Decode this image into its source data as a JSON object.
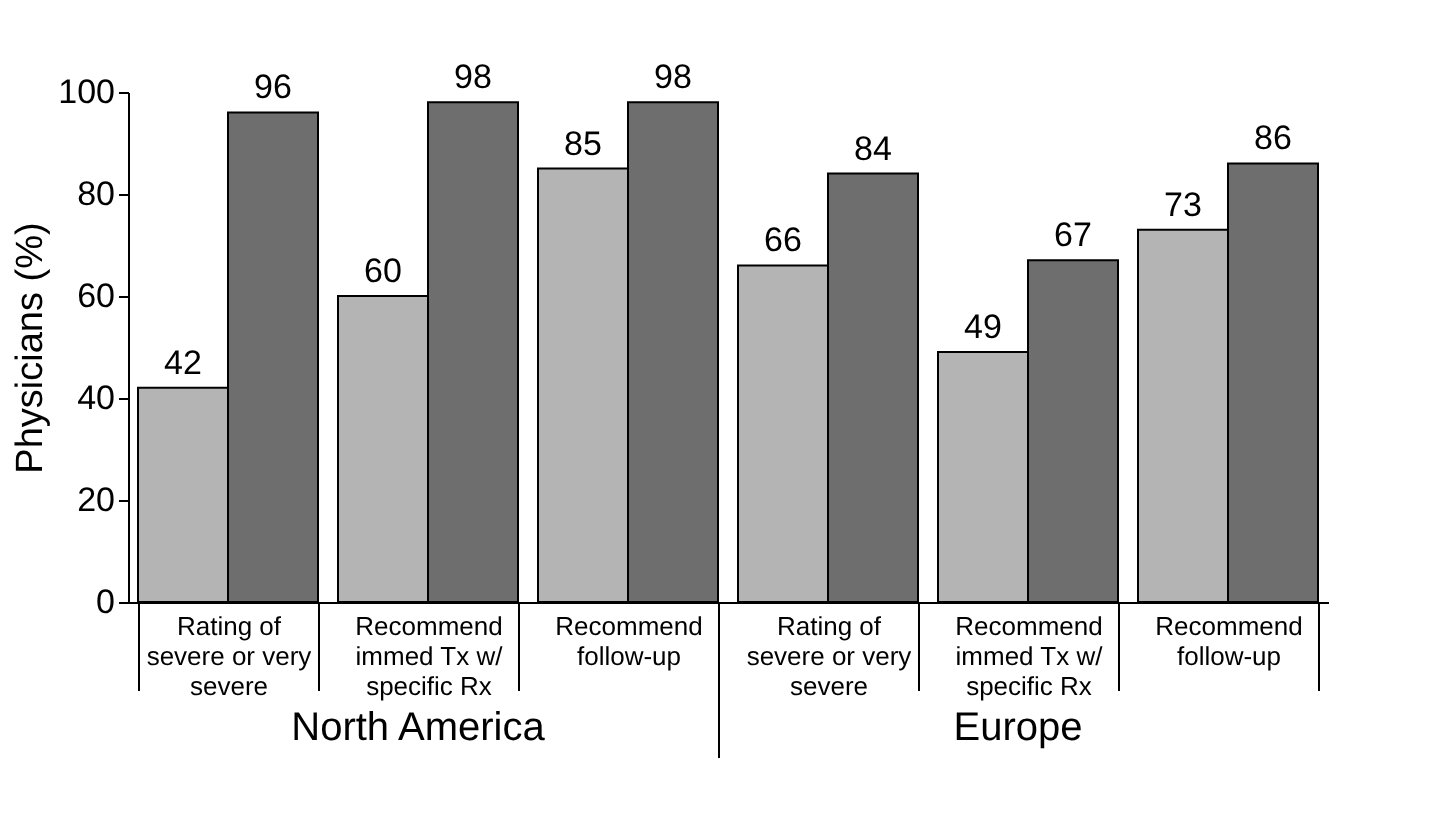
{
  "chart_data": {
    "type": "bar",
    "ylabel": "Physicians (%)",
    "categories": [
      "Rating of severe or very severe",
      "Recommend immed Tx w/ specific Rx",
      "Recommend follow-up",
      "Rating of severe or very severe",
      "Recommend immed Tx w/ specific Rx",
      "Recommend follow-up"
    ],
    "series": [
      {
        "color": "#b4b4b4",
        "values": [
          42,
          60,
          85,
          66,
          49,
          73
        ]
      },
      {
        "color": "#6e6e6e",
        "values": [
          96,
          98,
          98,
          84,
          67,
          86
        ]
      }
    ],
    "ylim": [
      0,
      100
    ],
    "yticks": [
      0,
      20,
      40,
      60,
      80,
      100
    ],
    "grid": false,
    "legend": false,
    "data_labels": true,
    "annotations": [
      "North America",
      "Europe"
    ]
  }
}
